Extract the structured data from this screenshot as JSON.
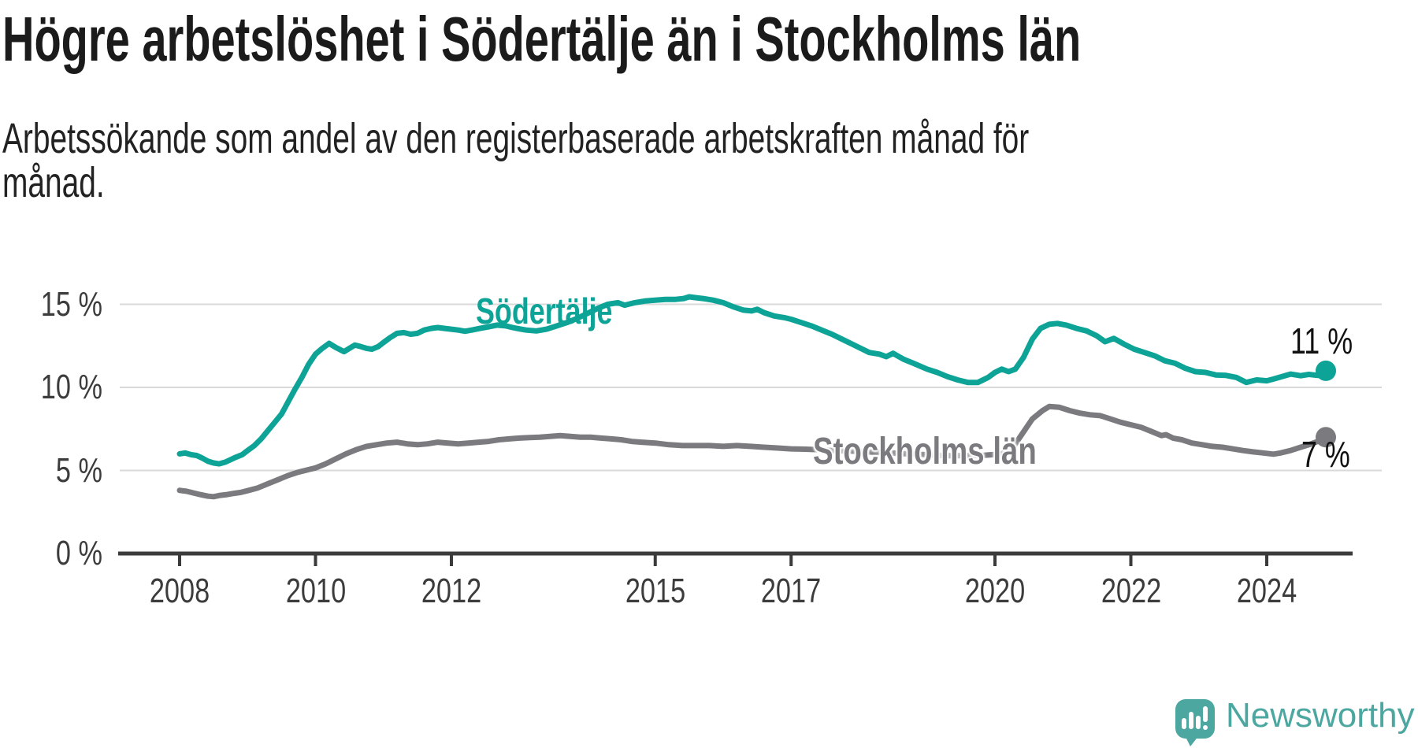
{
  "title": "Högre arbetslöshet i Södertälje än i Stockholms län",
  "subtitle": "Arbetssökande som andel av den registerbaserade arbetskraften månad för månad.",
  "branding": {
    "logo_text": "Newsworthy",
    "logo_color": "#4ca7a0",
    "logo_icon": "speech-bubble-bar-chart-exclamation"
  },
  "colors": {
    "sodertalje_line": "#0da396",
    "stockholm_line": "#7b7b7f",
    "gridline": "#d9d9d9",
    "axis": "#3b3b3b",
    "label_text": "#3c3c3c"
  },
  "chart_data": {
    "type": "line",
    "title": "Högre arbetslöshet i Södertälje än i Stockholms län",
    "subtitle": "Arbetssökande som andel av den registerbaserade arbetskraften månad för månad.",
    "unit": "%",
    "grid": "horizontal-only",
    "legend_position": "inline-labels-on-lines",
    "x_axis": {
      "range": [
        2008.0,
        2024.9
      ],
      "ticks": [
        2008,
        2010,
        2012,
        2015,
        2017,
        2020,
        2022,
        2024
      ],
      "labels": [
        "2008",
        "2010",
        "2012",
        "2015",
        "2017",
        "2020",
        "2022",
        "2024"
      ]
    },
    "y_axis": {
      "range": [
        0,
        18
      ],
      "ticks": [
        0,
        5,
        10,
        15
      ],
      "labels": [
        "0 %",
        "5 %",
        "10 %",
        "15 %"
      ]
    },
    "series": [
      {
        "name": "Södertälje",
        "color": "#0da396",
        "end_value": 11,
        "end_label": "11 %",
        "points": [
          [
            2008.0,
            6.0
          ],
          [
            2008.08,
            6.05
          ],
          [
            2008.17,
            5.95
          ],
          [
            2008.25,
            5.9
          ],
          [
            2008.33,
            5.75
          ],
          [
            2008.42,
            5.55
          ],
          [
            2008.5,
            5.45
          ],
          [
            2008.58,
            5.4
          ],
          [
            2008.67,
            5.5
          ],
          [
            2008.75,
            5.65
          ],
          [
            2008.83,
            5.8
          ],
          [
            2008.92,
            5.95
          ],
          [
            2009.0,
            6.2
          ],
          [
            2009.1,
            6.5
          ],
          [
            2009.2,
            6.9
          ],
          [
            2009.3,
            7.4
          ],
          [
            2009.4,
            7.9
          ],
          [
            2009.5,
            8.4
          ],
          [
            2009.6,
            9.15
          ],
          [
            2009.7,
            9.9
          ],
          [
            2009.8,
            10.6
          ],
          [
            2009.9,
            11.4
          ],
          [
            2010.0,
            12.0
          ],
          [
            2010.1,
            12.35
          ],
          [
            2010.2,
            12.65
          ],
          [
            2010.3,
            12.4
          ],
          [
            2010.42,
            12.15
          ],
          [
            2010.5,
            12.35
          ],
          [
            2010.58,
            12.55
          ],
          [
            2010.67,
            12.45
          ],
          [
            2010.75,
            12.35
          ],
          [
            2010.83,
            12.3
          ],
          [
            2010.92,
            12.45
          ],
          [
            2011.0,
            12.7
          ],
          [
            2011.1,
            13.0
          ],
          [
            2011.2,
            13.25
          ],
          [
            2011.3,
            13.3
          ],
          [
            2011.4,
            13.2
          ],
          [
            2011.5,
            13.25
          ],
          [
            2011.6,
            13.45
          ],
          [
            2011.7,
            13.55
          ],
          [
            2011.8,
            13.6
          ],
          [
            2011.9,
            13.55
          ],
          [
            2012.0,
            13.5
          ],
          [
            2012.1,
            13.45
          ],
          [
            2012.2,
            13.38
          ],
          [
            2012.3,
            13.45
          ],
          [
            2012.42,
            13.55
          ],
          [
            2012.55,
            13.65
          ],
          [
            2012.67,
            13.75
          ],
          [
            2012.8,
            13.7
          ],
          [
            2012.9,
            13.6
          ],
          [
            2013.0,
            13.52
          ],
          [
            2013.1,
            13.45
          ],
          [
            2013.25,
            13.4
          ],
          [
            2013.4,
            13.5
          ],
          [
            2013.55,
            13.7
          ],
          [
            2013.7,
            13.9
          ],
          [
            2013.85,
            14.15
          ],
          [
            2014.0,
            14.45
          ],
          [
            2014.15,
            14.75
          ],
          [
            2014.3,
            15.0
          ],
          [
            2014.45,
            15.1
          ],
          [
            2014.55,
            14.95
          ],
          [
            2014.7,
            15.1
          ],
          [
            2014.85,
            15.2
          ],
          [
            2015.0,
            15.25
          ],
          [
            2015.15,
            15.3
          ],
          [
            2015.3,
            15.3
          ],
          [
            2015.42,
            15.35
          ],
          [
            2015.5,
            15.45
          ],
          [
            2015.6,
            15.4
          ],
          [
            2015.7,
            15.35
          ],
          [
            2015.85,
            15.25
          ],
          [
            2016.0,
            15.1
          ],
          [
            2016.15,
            14.85
          ],
          [
            2016.3,
            14.65
          ],
          [
            2016.42,
            14.6
          ],
          [
            2016.5,
            14.7
          ],
          [
            2016.6,
            14.5
          ],
          [
            2016.75,
            14.3
          ],
          [
            2016.9,
            14.2
          ],
          [
            2017.0,
            14.1
          ],
          [
            2017.15,
            13.9
          ],
          [
            2017.3,
            13.7
          ],
          [
            2017.45,
            13.45
          ],
          [
            2017.6,
            13.2
          ],
          [
            2017.75,
            12.9
          ],
          [
            2017.9,
            12.6
          ],
          [
            2018.0,
            12.4
          ],
          [
            2018.15,
            12.1
          ],
          [
            2018.3,
            12.0
          ],
          [
            2018.4,
            11.85
          ],
          [
            2018.5,
            12.05
          ],
          [
            2018.65,
            11.7
          ],
          [
            2018.8,
            11.45
          ],
          [
            2019.0,
            11.1
          ],
          [
            2019.15,
            10.9
          ],
          [
            2019.3,
            10.65
          ],
          [
            2019.45,
            10.45
          ],
          [
            2019.6,
            10.3
          ],
          [
            2019.75,
            10.3
          ],
          [
            2019.9,
            10.6
          ],
          [
            2020.0,
            10.9
          ],
          [
            2020.1,
            11.1
          ],
          [
            2020.2,
            10.95
          ],
          [
            2020.3,
            11.1
          ],
          [
            2020.42,
            11.8
          ],
          [
            2020.55,
            12.9
          ],
          [
            2020.67,
            13.55
          ],
          [
            2020.8,
            13.8
          ],
          [
            2020.92,
            13.85
          ],
          [
            2021.05,
            13.75
          ],
          [
            2021.2,
            13.55
          ],
          [
            2021.35,
            13.4
          ],
          [
            2021.5,
            13.1
          ],
          [
            2021.62,
            12.75
          ],
          [
            2021.75,
            12.95
          ],
          [
            2021.9,
            12.6
          ],
          [
            2022.05,
            12.3
          ],
          [
            2022.2,
            12.1
          ],
          [
            2022.35,
            11.9
          ],
          [
            2022.5,
            11.6
          ],
          [
            2022.65,
            11.45
          ],
          [
            2022.8,
            11.15
          ],
          [
            2022.95,
            10.95
          ],
          [
            2023.1,
            10.9
          ],
          [
            2023.25,
            10.75
          ],
          [
            2023.4,
            10.72
          ],
          [
            2023.55,
            10.6
          ],
          [
            2023.7,
            10.3
          ],
          [
            2023.85,
            10.45
          ],
          [
            2024.0,
            10.4
          ],
          [
            2024.1,
            10.5
          ],
          [
            2024.2,
            10.62
          ],
          [
            2024.35,
            10.8
          ],
          [
            2024.5,
            10.7
          ],
          [
            2024.62,
            10.78
          ],
          [
            2024.75,
            10.72
          ],
          [
            2024.87,
            11.0
          ]
        ]
      },
      {
        "name": "Stockholms län",
        "color": "#7b7b7f",
        "end_value": 7,
        "end_label": "7 %",
        "points": [
          [
            2008.0,
            3.8
          ],
          [
            2008.1,
            3.75
          ],
          [
            2008.2,
            3.65
          ],
          [
            2008.3,
            3.55
          ],
          [
            2008.42,
            3.45
          ],
          [
            2008.5,
            3.42
          ],
          [
            2008.6,
            3.5
          ],
          [
            2008.7,
            3.55
          ],
          [
            2008.8,
            3.62
          ],
          [
            2008.9,
            3.68
          ],
          [
            2009.0,
            3.78
          ],
          [
            2009.15,
            3.95
          ],
          [
            2009.3,
            4.2
          ],
          [
            2009.45,
            4.45
          ],
          [
            2009.6,
            4.7
          ],
          [
            2009.75,
            4.9
          ],
          [
            2009.9,
            5.05
          ],
          [
            2010.0,
            5.15
          ],
          [
            2010.15,
            5.4
          ],
          [
            2010.3,
            5.7
          ],
          [
            2010.45,
            6.0
          ],
          [
            2010.6,
            6.25
          ],
          [
            2010.75,
            6.45
          ],
          [
            2010.9,
            6.55
          ],
          [
            2011.05,
            6.65
          ],
          [
            2011.2,
            6.7
          ],
          [
            2011.35,
            6.6
          ],
          [
            2011.5,
            6.55
          ],
          [
            2011.65,
            6.6
          ],
          [
            2011.8,
            6.7
          ],
          [
            2011.95,
            6.65
          ],
          [
            2012.1,
            6.6
          ],
          [
            2012.25,
            6.65
          ],
          [
            2012.4,
            6.7
          ],
          [
            2012.55,
            6.75
          ],
          [
            2012.7,
            6.85
          ],
          [
            2012.85,
            6.9
          ],
          [
            2013.0,
            6.95
          ],
          [
            2013.15,
            6.98
          ],
          [
            2013.3,
            7.0
          ],
          [
            2013.45,
            7.05
          ],
          [
            2013.6,
            7.1
          ],
          [
            2013.75,
            7.05
          ],
          [
            2013.9,
            7.0
          ],
          [
            2014.05,
            7.0
          ],
          [
            2014.2,
            6.95
          ],
          [
            2014.35,
            6.9
          ],
          [
            2014.5,
            6.85
          ],
          [
            2014.65,
            6.75
          ],
          [
            2014.8,
            6.7
          ],
          [
            2015.0,
            6.65
          ],
          [
            2015.2,
            6.55
          ],
          [
            2015.4,
            6.5
          ],
          [
            2015.6,
            6.5
          ],
          [
            2015.8,
            6.5
          ],
          [
            2016.0,
            6.45
          ],
          [
            2016.2,
            6.5
          ],
          [
            2016.4,
            6.45
          ],
          [
            2016.6,
            6.4
          ],
          [
            2016.8,
            6.35
          ],
          [
            2017.0,
            6.3
          ],
          [
            2017.2,
            6.28
          ],
          [
            2017.4,
            6.25
          ],
          [
            2017.6,
            6.2
          ],
          [
            2017.8,
            6.18
          ],
          [
            2018.0,
            6.15
          ],
          [
            2018.2,
            6.1
          ],
          [
            2018.4,
            6.08
          ],
          [
            2018.6,
            6.02
          ],
          [
            2018.8,
            5.98
          ],
          [
            2019.0,
            5.95
          ],
          [
            2019.2,
            5.9
          ],
          [
            2019.4,
            5.88
          ],
          [
            2019.6,
            5.9
          ],
          [
            2019.8,
            5.9
          ],
          [
            2019.95,
            5.95
          ],
          [
            2020.1,
            6.0
          ],
          [
            2020.25,
            6.3
          ],
          [
            2020.4,
            7.2
          ],
          [
            2020.55,
            8.1
          ],
          [
            2020.7,
            8.6
          ],
          [
            2020.8,
            8.85
          ],
          [
            2020.95,
            8.8
          ],
          [
            2021.1,
            8.6
          ],
          [
            2021.25,
            8.45
          ],
          [
            2021.4,
            8.35
          ],
          [
            2021.55,
            8.3
          ],
          [
            2021.7,
            8.1
          ],
          [
            2021.85,
            7.9
          ],
          [
            2022.0,
            7.75
          ],
          [
            2022.15,
            7.6
          ],
          [
            2022.3,
            7.35
          ],
          [
            2022.45,
            7.1
          ],
          [
            2022.52,
            7.15
          ],
          [
            2022.62,
            6.95
          ],
          [
            2022.75,
            6.85
          ],
          [
            2022.9,
            6.65
          ],
          [
            2023.05,
            6.55
          ],
          [
            2023.2,
            6.45
          ],
          [
            2023.35,
            6.4
          ],
          [
            2023.5,
            6.3
          ],
          [
            2023.65,
            6.2
          ],
          [
            2023.8,
            6.12
          ],
          [
            2023.95,
            6.05
          ],
          [
            2024.1,
            5.98
          ],
          [
            2024.2,
            6.05
          ],
          [
            2024.35,
            6.2
          ],
          [
            2024.5,
            6.4
          ],
          [
            2024.62,
            6.55
          ],
          [
            2024.75,
            6.75
          ],
          [
            2024.87,
            7.0
          ]
        ]
      }
    ]
  }
}
